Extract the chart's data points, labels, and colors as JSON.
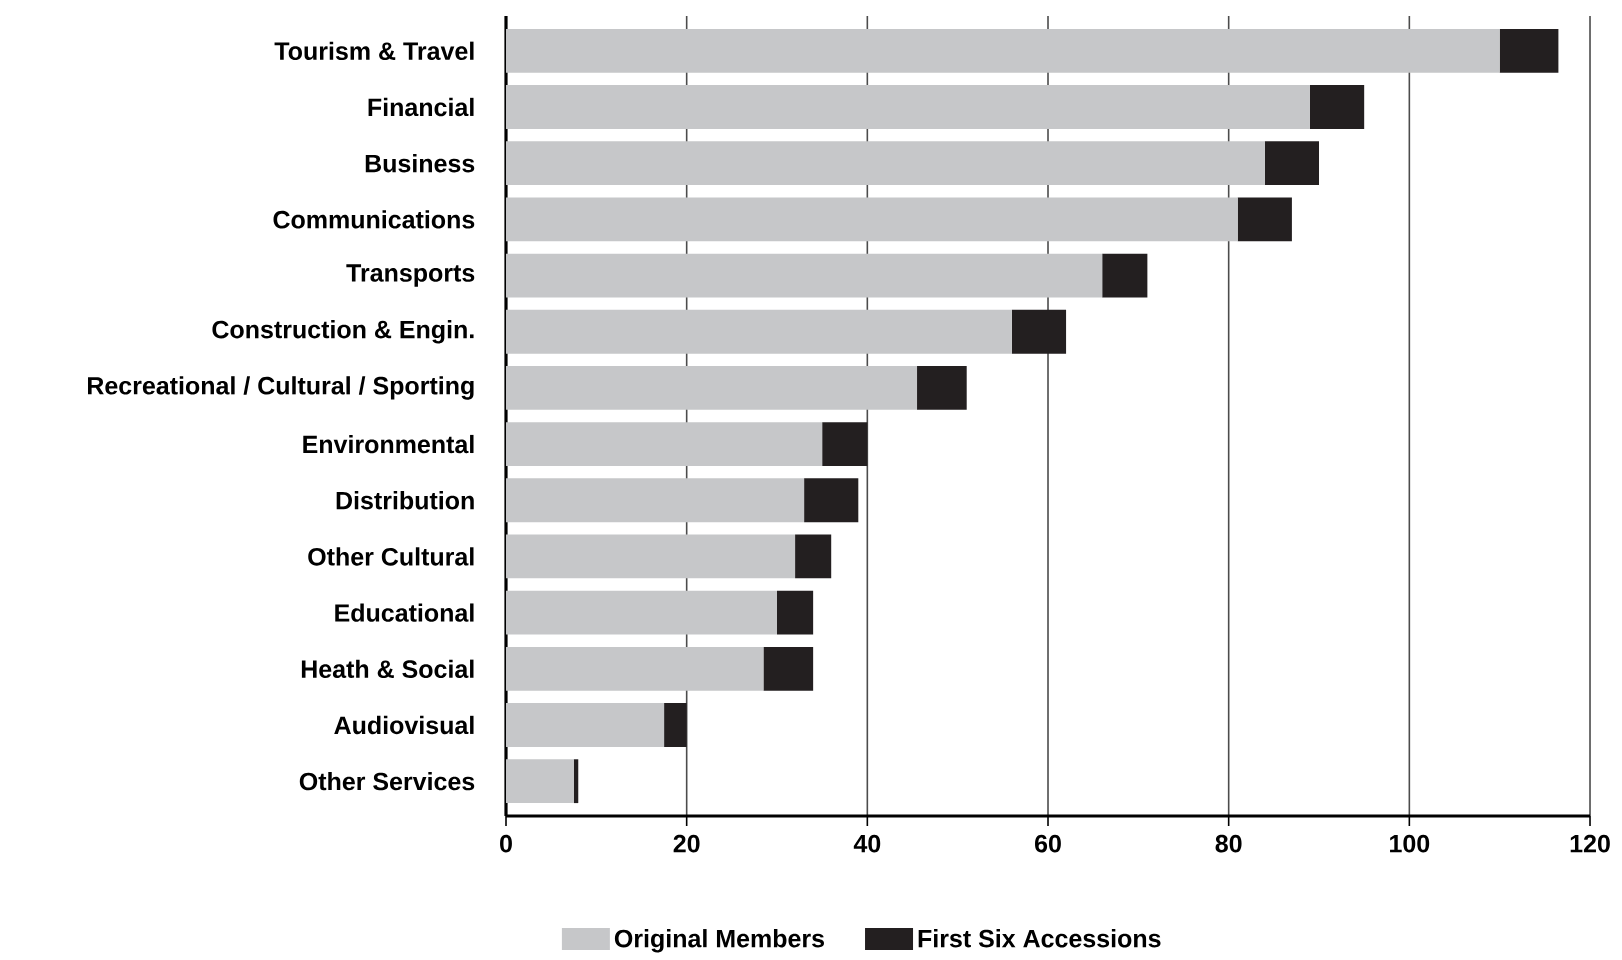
{
  "chart_data": {
    "type": "bar",
    "orientation": "horizontal",
    "stacked": true,
    "categories": [
      "Tourism & Travel",
      "Financial",
      "Business",
      "Communications",
      "Transports",
      "Construction & Engin.",
      "Recreational / Cultural / Sporting",
      "Environmental",
      "Distribution",
      "Other Cultural",
      "Educational",
      "Heath & Social",
      "Audiovisual",
      "Other Services"
    ],
    "series": [
      {
        "name": "Original Members",
        "color": "#c6c7c9",
        "values": [
          110,
          89,
          84,
          81,
          66,
          56,
          45.5,
          35,
          33,
          32,
          30,
          28.5,
          17.5,
          7.5
        ]
      },
      {
        "name": "First Six Accessions",
        "color": "#231f20",
        "values": [
          6.5,
          6,
          6,
          6,
          5,
          6,
          5.5,
          5,
          6,
          4,
          4,
          5.5,
          2.5,
          0.5
        ]
      }
    ],
    "xlim": [
      0,
      120
    ],
    "xticks": [
      0,
      20,
      40,
      60,
      80,
      100,
      120
    ],
    "grid": "x",
    "legend": "bottom"
  }
}
